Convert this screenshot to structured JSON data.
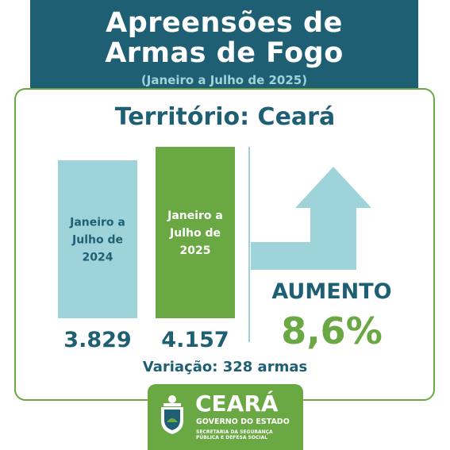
{
  "header": {
    "title_line1": "Apreensões de",
    "title_line2": "Armas de Fogo",
    "subtitle": "(Janeiro a Julho de 2025)"
  },
  "territory": "Território: Ceará",
  "chart_data": {
    "type": "bar",
    "categories": [
      "Janeiro a Julho de 2024",
      "Janeiro a Julho de 2025"
    ],
    "category_lines": [
      [
        "Janeiro a",
        "Julho de",
        "2024"
      ],
      [
        "Janeiro a",
        "Julho de",
        "2025"
      ]
    ],
    "values": [
      3829,
      4157
    ],
    "value_labels": [
      "3.829",
      "4.157"
    ],
    "colors": [
      "#9fd3da",
      "#6aa843"
    ],
    "label_colors": [
      "#1f5f73",
      "#ffffff"
    ],
    "trend": "up",
    "trend_label": "AUMENTO",
    "change_percent": "8,6%",
    "variation": "Variação: 328 armas"
  },
  "colors": {
    "dark_teal": "#1f5f73",
    "light_teal": "#9fd3da",
    "green": "#6aa843"
  },
  "logo": {
    "name": "CEARÁ",
    "government": "GOVERNO DO ESTADO",
    "secretariat_line1": "SECRETARIA DA SEGURANÇA",
    "secretariat_line2": "PÚBLICA E DEFESA SOCIAL"
  }
}
